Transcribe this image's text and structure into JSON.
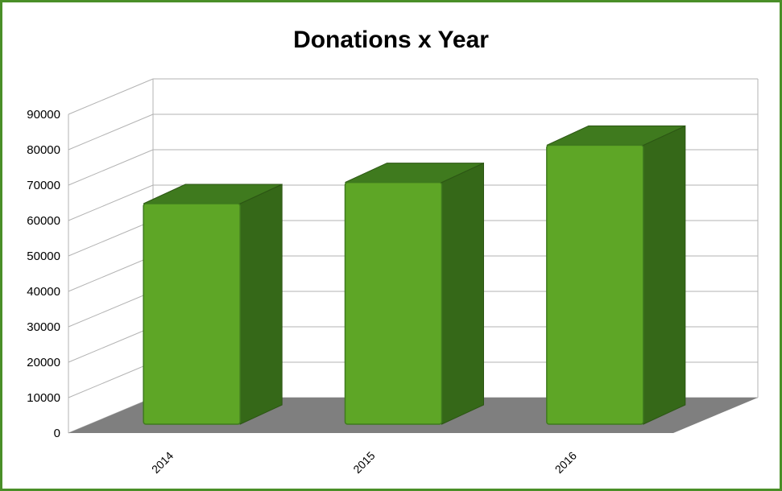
{
  "chart_data": {
    "type": "bar",
    "title": "Donations x Year",
    "xlabel": "",
    "ylabel": "",
    "categories": [
      "2014",
      "2015",
      "2016"
    ],
    "values": [
      65000,
      71000,
      81500
    ],
    "ylim": [
      0,
      90000
    ],
    "yticks": [
      "0",
      "10000",
      "20000",
      "30000",
      "40000",
      "50000",
      "60000",
      "70000",
      "80000",
      "90000"
    ],
    "grid": true,
    "legend": "none",
    "style": "3d",
    "colors": {
      "bar_front": "#5ea626",
      "bar_side": "#356818",
      "bar_top": "#3f7a1e",
      "floor": "#7f7f7f",
      "grid": "#b3b3b3",
      "frame": "#4a8f28"
    }
  }
}
